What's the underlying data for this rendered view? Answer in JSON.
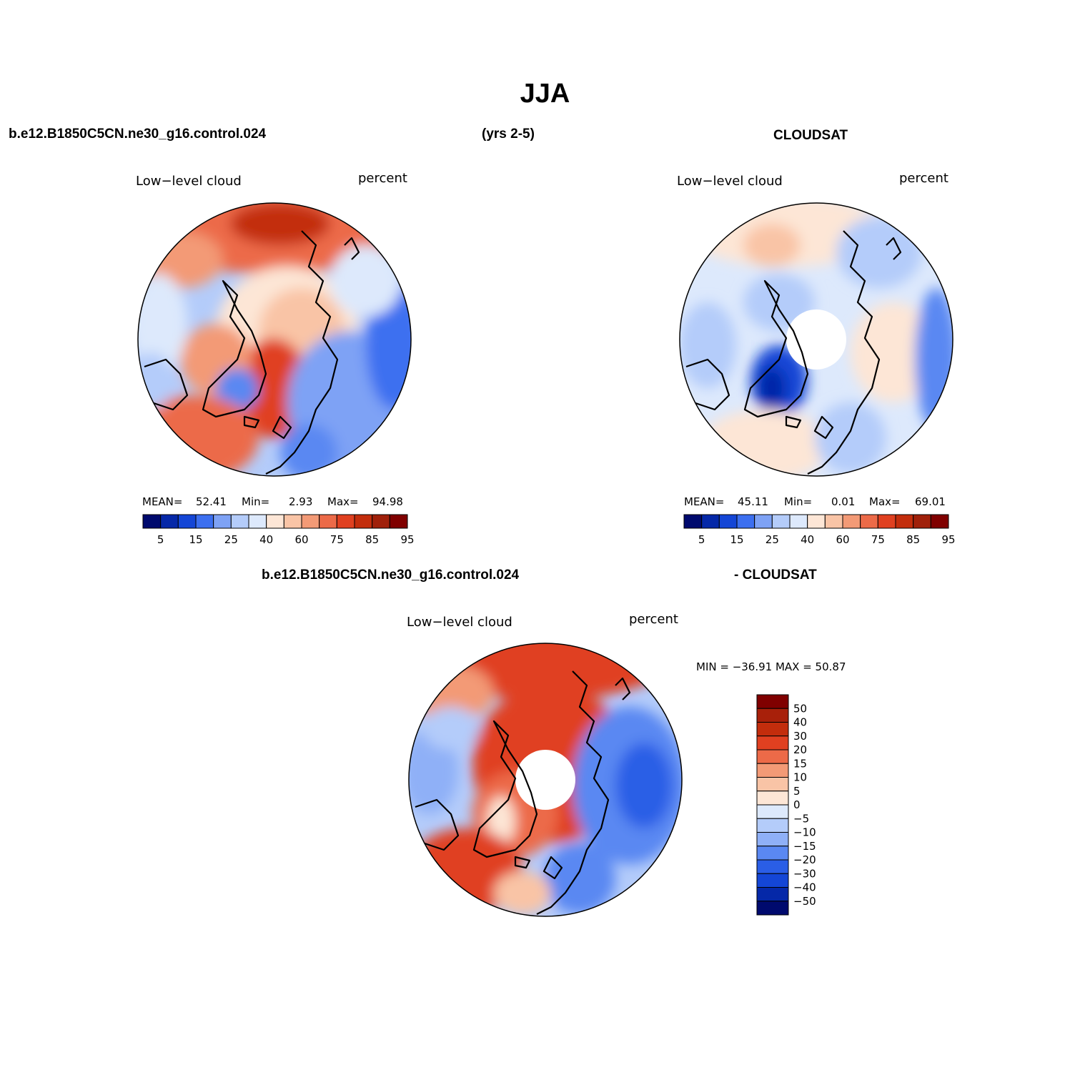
{
  "title": "JJA",
  "header": {
    "case": "b.e12.B1850C5CN.ne30_g16.control.024",
    "years": "(yrs 2-5)",
    "obs": "CLOUDSAT",
    "diff_case": "b.e12.B1850C5CN.ne30_g16.control.024",
    "diff_obs": "- CLOUDSAT"
  },
  "panels": [
    {
      "id": "model",
      "variable": "Low−level cloud",
      "units": "percent",
      "stats": {
        "mean_label": "MEAN=",
        "mean": "52.41",
        "min_label": "Min=",
        "min": "2.93",
        "max_label": "Max=",
        "max": "94.98"
      },
      "pole_hole": false
    },
    {
      "id": "obs",
      "variable": "Low−level cloud",
      "units": "percent",
      "stats": {
        "mean_label": "MEAN=",
        "mean": "45.11",
        "min_label": "Min=",
        "min": "0.01",
        "max_label": "Max=",
        "max": "69.01"
      },
      "pole_hole": true
    },
    {
      "id": "diff",
      "variable": "Low−level cloud",
      "units": "percent",
      "minmax": "MIN = −36.91 MAX =   50.87",
      "pole_hole": true
    }
  ],
  "colorbar_main": {
    "colors": [
      "#000a6e",
      "#0528a8",
      "#1446d6",
      "#3c6ff0",
      "#7ea2f5",
      "#b4ccfa",
      "#dde9fc",
      "#fde6d6",
      "#f9c4a6",
      "#f39a76",
      "#ec6a48",
      "#e04020",
      "#c32d0c",
      "#a0200a",
      "#800000"
    ],
    "labels": [
      "5",
      "15",
      "25",
      "40",
      "60",
      "75",
      "85",
      "95"
    ]
  },
  "colorbar_diff": {
    "colors": [
      "#800000",
      "#a8200a",
      "#c32d0c",
      "#e04020",
      "#ec6a48",
      "#f39a76",
      "#f9c4a6",
      "#fde6d6",
      "#dde9fc",
      "#b4ccfa",
      "#8fb0f7",
      "#5a88f2",
      "#2a5ee6",
      "#1446d6",
      "#0528a8",
      "#000a6e"
    ],
    "labels": [
      "50",
      "40",
      "30",
      "20",
      "15",
      "10",
      "5",
      "0",
      "−5",
      "−10",
      "−15",
      "−20",
      "−30",
      "−40",
      "−50"
    ]
  }
}
